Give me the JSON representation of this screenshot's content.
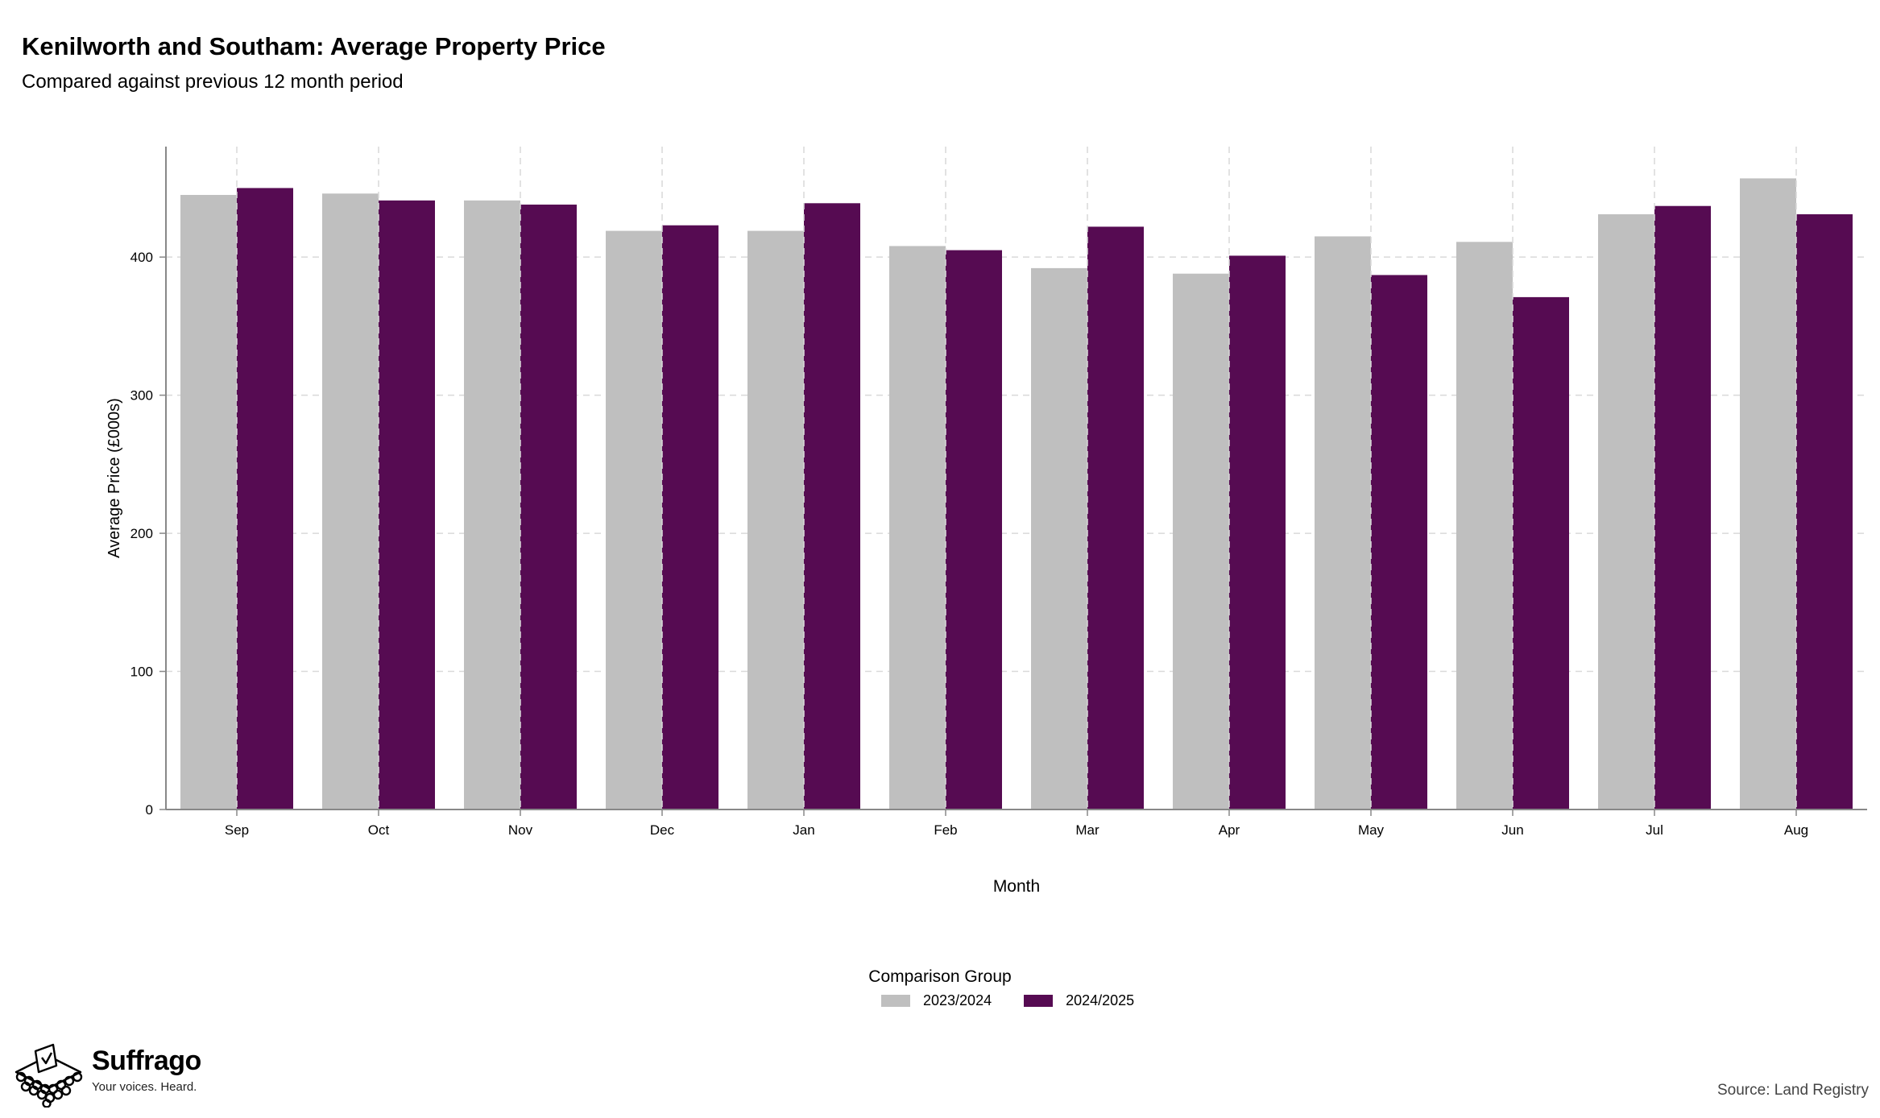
{
  "header": {
    "title": "Kenilworth and Southam: Average Property Price",
    "subtitle": "Compared against previous 12 month period"
  },
  "legend": {
    "title": "Comparison Group",
    "items": [
      {
        "label": "2023/2024",
        "color": "#bfbfbf"
      },
      {
        "label": "2024/2025",
        "color": "#560b52"
      }
    ]
  },
  "footer": {
    "brand": "Suffrago",
    "tagline": "Your voices. Heard.",
    "source": "Source: Land Registry"
  },
  "chart_data": {
    "type": "bar",
    "title": "Kenilworth and Southam: Average Property Price",
    "subtitle": "Compared against previous 12 month period",
    "xlabel": "Month",
    "ylabel": "Average Price (£000s)",
    "categories": [
      "Sep",
      "Oct",
      "Nov",
      "Dec",
      "Jan",
      "Feb",
      "Mar",
      "Apr",
      "May",
      "Jun",
      "Jul",
      "Aug"
    ],
    "series": [
      {
        "name": "2023/2024",
        "color": "#bfbfbf",
        "values": [
          445,
          446,
          441,
          419,
          419,
          408,
          392,
          388,
          415,
          411,
          431,
          457
        ]
      },
      {
        "name": "2024/2025",
        "color": "#560b52",
        "values": [
          450,
          441,
          438,
          423,
          439,
          405,
          422,
          401,
          387,
          371,
          437,
          431
        ]
      }
    ],
    "ylim": [
      0,
      480
    ],
    "yticks": [
      0,
      100,
      200,
      300,
      400
    ],
    "grid": true,
    "legend_position": "bottom-center"
  }
}
